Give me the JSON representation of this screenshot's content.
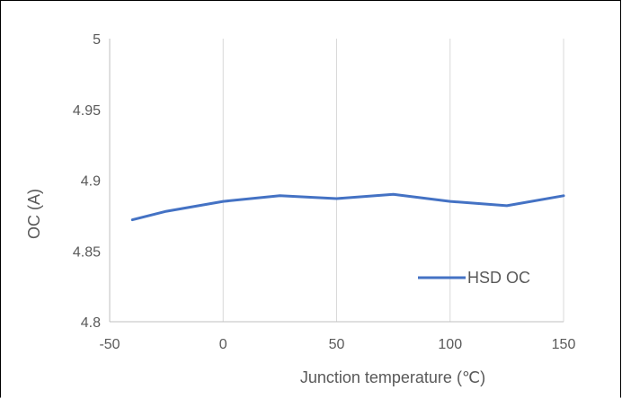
{
  "chart_data": {
    "type": "line",
    "title": "",
    "xlabel": "Junction temperature (℃)",
    "ylabel": "OC (A)",
    "xlim": [
      -50,
      150
    ],
    "ylim": [
      4.8,
      5.0
    ],
    "x_ticks": [
      -50,
      0,
      50,
      100,
      150
    ],
    "y_ticks": [
      4.8,
      4.85,
      4.9,
      4.95,
      5.0
    ],
    "x_tick_labels": [
      "-50",
      "0",
      "50",
      "100",
      "150"
    ],
    "y_tick_labels": [
      "4.8",
      "4.85",
      "4.9",
      "4.95",
      "5"
    ],
    "grid": true,
    "legend_position": "bottom-right",
    "series": [
      {
        "name": "HSD OC",
        "color": "#4472c4",
        "x": [
          -40,
          -25,
          0,
          25,
          50,
          75,
          100,
          125,
          150
        ],
        "y": [
          4.872,
          4.878,
          4.885,
          4.889,
          4.887,
          4.89,
          4.885,
          4.882,
          4.889
        ]
      }
    ]
  }
}
